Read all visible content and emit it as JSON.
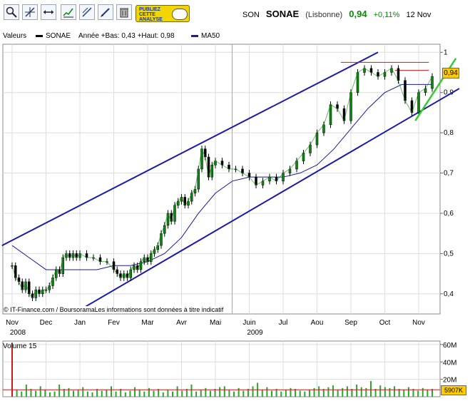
{
  "toolbar": {
    "buttons": [
      {
        "name": "zoom-icon"
      },
      {
        "name": "crosshair-icon"
      },
      {
        "name": "horizontal-line-icon"
      },
      {
        "name": "indicator-chart-icon"
      },
      {
        "name": "trend-line-icon"
      },
      {
        "name": "pen-icon"
      },
      {
        "name": "trash-icon"
      }
    ],
    "ad_text": "PUBLIEZ\nCETTE\nANALYSE"
  },
  "quote": {
    "code": "SON",
    "name": "SONAE",
    "exchange": "(Lisbonne)",
    "last": "0,94",
    "change": "+0,11%",
    "date": "12 Nov",
    "up_color": "#0a8a0a"
  },
  "legend": {
    "label": "Valeurs",
    "series_name": "SONAE",
    "stats": "Année +Bas: 0,43 +Haut: 0,98",
    "ma_name": "MA50"
  },
  "copyright": "© IT-Finance.com / BoursoramaLes informations sont données à titre indicatif",
  "volume_label": "Volume 15",
  "value_badge": "0,94",
  "volume_badge": "5907K",
  "chart_data": {
    "type": "line",
    "price": {
      "y_ticks": [
        0.4,
        0.5,
        0.6,
        0.7,
        0.8,
        0.9,
        1.0
      ],
      "y_tick_labels": [
        "0,4",
        "0,5",
        "0,6",
        "0,7",
        "0,8",
        "0,9",
        "1"
      ],
      "ylim": [
        0.35,
        1.02
      ],
      "x_month_labels": [
        "Nov",
        "Dec",
        "Jan",
        "Fev",
        "Mar",
        "Avr",
        "Mai",
        "Juin",
        "Jul",
        "Aou",
        "Sep",
        "Oct",
        "Nov"
      ],
      "year_labels": [
        {
          "label": "2008",
          "month_index": 0
        },
        {
          "label": "2009",
          "month_index": 7
        }
      ],
      "close_series": [
        {
          "m": 0.0,
          "v": 0.47
        },
        {
          "m": 0.1,
          "v": 0.44
        },
        {
          "m": 0.2,
          "v": 0.43
        },
        {
          "m": 0.3,
          "v": 0.41
        },
        {
          "m": 0.4,
          "v": 0.43
        },
        {
          "m": 0.5,
          "v": 0.4
        },
        {
          "m": 0.6,
          "v": 0.39
        },
        {
          "m": 0.7,
          "v": 0.41
        },
        {
          "m": 0.8,
          "v": 0.4
        },
        {
          "m": 0.9,
          "v": 0.41
        },
        {
          "m": 1.0,
          "v": 0.41
        },
        {
          "m": 1.1,
          "v": 0.42
        },
        {
          "m": 1.2,
          "v": 0.44
        },
        {
          "m": 1.3,
          "v": 0.46
        },
        {
          "m": 1.4,
          "v": 0.45
        },
        {
          "m": 1.5,
          "v": 0.49
        },
        {
          "m": 1.6,
          "v": 0.5
        },
        {
          "m": 1.7,
          "v": 0.49
        },
        {
          "m": 1.8,
          "v": 0.5
        },
        {
          "m": 1.9,
          "v": 0.49
        },
        {
          "m": 2.0,
          "v": 0.5
        },
        {
          "m": 2.2,
          "v": 0.49
        },
        {
          "m": 2.4,
          "v": 0.49
        },
        {
          "m": 2.6,
          "v": 0.48
        },
        {
          "m": 2.8,
          "v": 0.48
        },
        {
          "m": 3.0,
          "v": 0.46
        },
        {
          "m": 3.1,
          "v": 0.45
        },
        {
          "m": 3.2,
          "v": 0.44
        },
        {
          "m": 3.3,
          "v": 0.45
        },
        {
          "m": 3.4,
          "v": 0.44
        },
        {
          "m": 3.5,
          "v": 0.46
        },
        {
          "m": 3.6,
          "v": 0.47
        },
        {
          "m": 3.7,
          "v": 0.46
        },
        {
          "m": 3.8,
          "v": 0.48
        },
        {
          "m": 3.9,
          "v": 0.49
        },
        {
          "m": 4.0,
          "v": 0.48
        },
        {
          "m": 4.1,
          "v": 0.5
        },
        {
          "m": 4.2,
          "v": 0.51
        },
        {
          "m": 4.3,
          "v": 0.52
        },
        {
          "m": 4.4,
          "v": 0.55
        },
        {
          "m": 4.5,
          "v": 0.57
        },
        {
          "m": 4.6,
          "v": 0.6
        },
        {
          "m": 4.7,
          "v": 0.58
        },
        {
          "m": 4.8,
          "v": 0.62
        },
        {
          "m": 4.9,
          "v": 0.63
        },
        {
          "m": 5.0,
          "v": 0.64
        },
        {
          "m": 5.1,
          "v": 0.62
        },
        {
          "m": 5.2,
          "v": 0.63
        },
        {
          "m": 5.3,
          "v": 0.65
        },
        {
          "m": 5.4,
          "v": 0.66
        },
        {
          "m": 5.5,
          "v": 0.71
        },
        {
          "m": 5.6,
          "v": 0.76
        },
        {
          "m": 5.7,
          "v": 0.74
        },
        {
          "m": 5.8,
          "v": 0.69
        },
        {
          "m": 5.9,
          "v": 0.72
        },
        {
          "m": 6.0,
          "v": 0.73
        },
        {
          "m": 6.2,
          "v": 0.72
        },
        {
          "m": 6.4,
          "v": 0.71
        },
        {
          "m": 6.6,
          "v": 0.71
        },
        {
          "m": 6.8,
          "v": 0.7
        },
        {
          "m": 7.0,
          "v": 0.69
        },
        {
          "m": 7.2,
          "v": 0.67
        },
        {
          "m": 7.4,
          "v": 0.68
        },
        {
          "m": 7.6,
          "v": 0.69
        },
        {
          "m": 7.8,
          "v": 0.68
        },
        {
          "m": 8.0,
          "v": 0.7
        },
        {
          "m": 8.2,
          "v": 0.71
        },
        {
          "m": 8.4,
          "v": 0.73
        },
        {
          "m": 8.6,
          "v": 0.75
        },
        {
          "m": 8.8,
          "v": 0.77
        },
        {
          "m": 9.0,
          "v": 0.8
        },
        {
          "m": 9.2,
          "v": 0.82
        },
        {
          "m": 9.4,
          "v": 0.87
        },
        {
          "m": 9.6,
          "v": 0.86
        },
        {
          "m": 9.8,
          "v": 0.83
        },
        {
          "m": 10.0,
          "v": 0.9
        },
        {
          "m": 10.2,
          "v": 0.95
        },
        {
          "m": 10.4,
          "v": 0.96
        },
        {
          "m": 10.6,
          "v": 0.95
        },
        {
          "m": 10.8,
          "v": 0.94
        },
        {
          "m": 11.0,
          "v": 0.95
        },
        {
          "m": 11.2,
          "v": 0.96
        },
        {
          "m": 11.4,
          "v": 0.93
        },
        {
          "m": 11.6,
          "v": 0.88
        },
        {
          "m": 11.8,
          "v": 0.85
        },
        {
          "m": 12.0,
          "v": 0.9
        },
        {
          "m": 12.2,
          "v": 0.91
        },
        {
          "m": 12.4,
          "v": 0.94
        }
      ],
      "ma50_series": [
        {
          "m": 0.0,
          "v": 0.52
        },
        {
          "m": 0.5,
          "v": 0.49
        },
        {
          "m": 1.0,
          "v": 0.46
        },
        {
          "m": 1.5,
          "v": 0.46
        },
        {
          "m": 2.0,
          "v": 0.46
        },
        {
          "m": 2.5,
          "v": 0.46
        },
        {
          "m": 3.0,
          "v": 0.47
        },
        {
          "m": 3.5,
          "v": 0.47
        },
        {
          "m": 4.0,
          "v": 0.48
        },
        {
          "m": 4.5,
          "v": 0.5
        },
        {
          "m": 5.0,
          "v": 0.54
        },
        {
          "m": 5.5,
          "v": 0.6
        },
        {
          "m": 6.0,
          "v": 0.65
        },
        {
          "m": 6.5,
          "v": 0.68
        },
        {
          "m": 7.0,
          "v": 0.69
        },
        {
          "m": 7.5,
          "v": 0.69
        },
        {
          "m": 8.0,
          "v": 0.69
        },
        {
          "m": 8.5,
          "v": 0.7
        },
        {
          "m": 9.0,
          "v": 0.72
        },
        {
          "m": 9.5,
          "v": 0.76
        },
        {
          "m": 10.0,
          "v": 0.81
        },
        {
          "m": 10.5,
          "v": 0.86
        },
        {
          "m": 11.0,
          "v": 0.9
        },
        {
          "m": 11.5,
          "v": 0.92
        },
        {
          "m": 12.0,
          "v": 0.92
        },
        {
          "m": 12.4,
          "v": 0.92
        }
      ],
      "channel_upper": [
        {
          "m": -0.3,
          "v": 0.52
        },
        {
          "m": 10.8,
          "v": 1.0
        }
      ],
      "channel_lower": [
        {
          "m": 2.0,
          "v": 0.36
        },
        {
          "m": 13.2,
          "v": 0.91
        }
      ],
      "resistance_lines": [
        {
          "m1": 9.7,
          "m2": 12.3,
          "v": 0.975
        },
        {
          "m1": 11.3,
          "m2": 12.3,
          "v": 0.955
        }
      ],
      "short_trend_green": [
        {
          "m": 11.9,
          "v": 0.83
        },
        {
          "m": 13.1,
          "v": 0.985
        }
      ],
      "colors": {
        "price": "#0a8a0a",
        "ma50": "#1a1a99",
        "channel": "#1a1aaa",
        "resistance": "#cc1a1a",
        "trend_green": "#33cc33",
        "grid": "#dcdcdc"
      }
    },
    "volume": {
      "y_tick_labels": [
        "60M",
        "40M",
        "20M"
      ],
      "y_ticks": [
        60,
        40,
        20
      ],
      "ylim": [
        0,
        64
      ],
      "volume_in_millions": [
        62,
        8,
        6,
        14,
        9,
        7,
        12,
        8,
        5,
        6,
        14,
        9,
        10,
        7,
        8,
        11,
        6,
        5,
        9,
        7,
        8,
        12,
        6,
        9,
        5,
        7,
        11,
        8,
        6,
        10,
        7,
        9,
        5,
        8,
        6,
        12,
        7,
        9,
        14,
        6,
        8,
        10,
        7,
        9,
        11,
        12,
        8,
        6,
        10,
        7,
        9,
        12,
        16,
        8,
        11,
        7,
        9,
        6,
        8,
        10,
        9,
        7,
        6,
        8,
        10,
        12,
        9,
        11,
        13,
        8,
        10,
        12,
        9,
        14,
        11,
        10,
        18,
        9,
        13,
        11,
        10,
        12,
        9,
        8,
        11,
        9,
        7,
        10,
        8,
        9
      ],
      "avg_line_in_millions": 8,
      "colors": {
        "bars": "#2aa62a",
        "spike": "#cc1a1a",
        "avg": "#cc1a1a"
      }
    }
  }
}
